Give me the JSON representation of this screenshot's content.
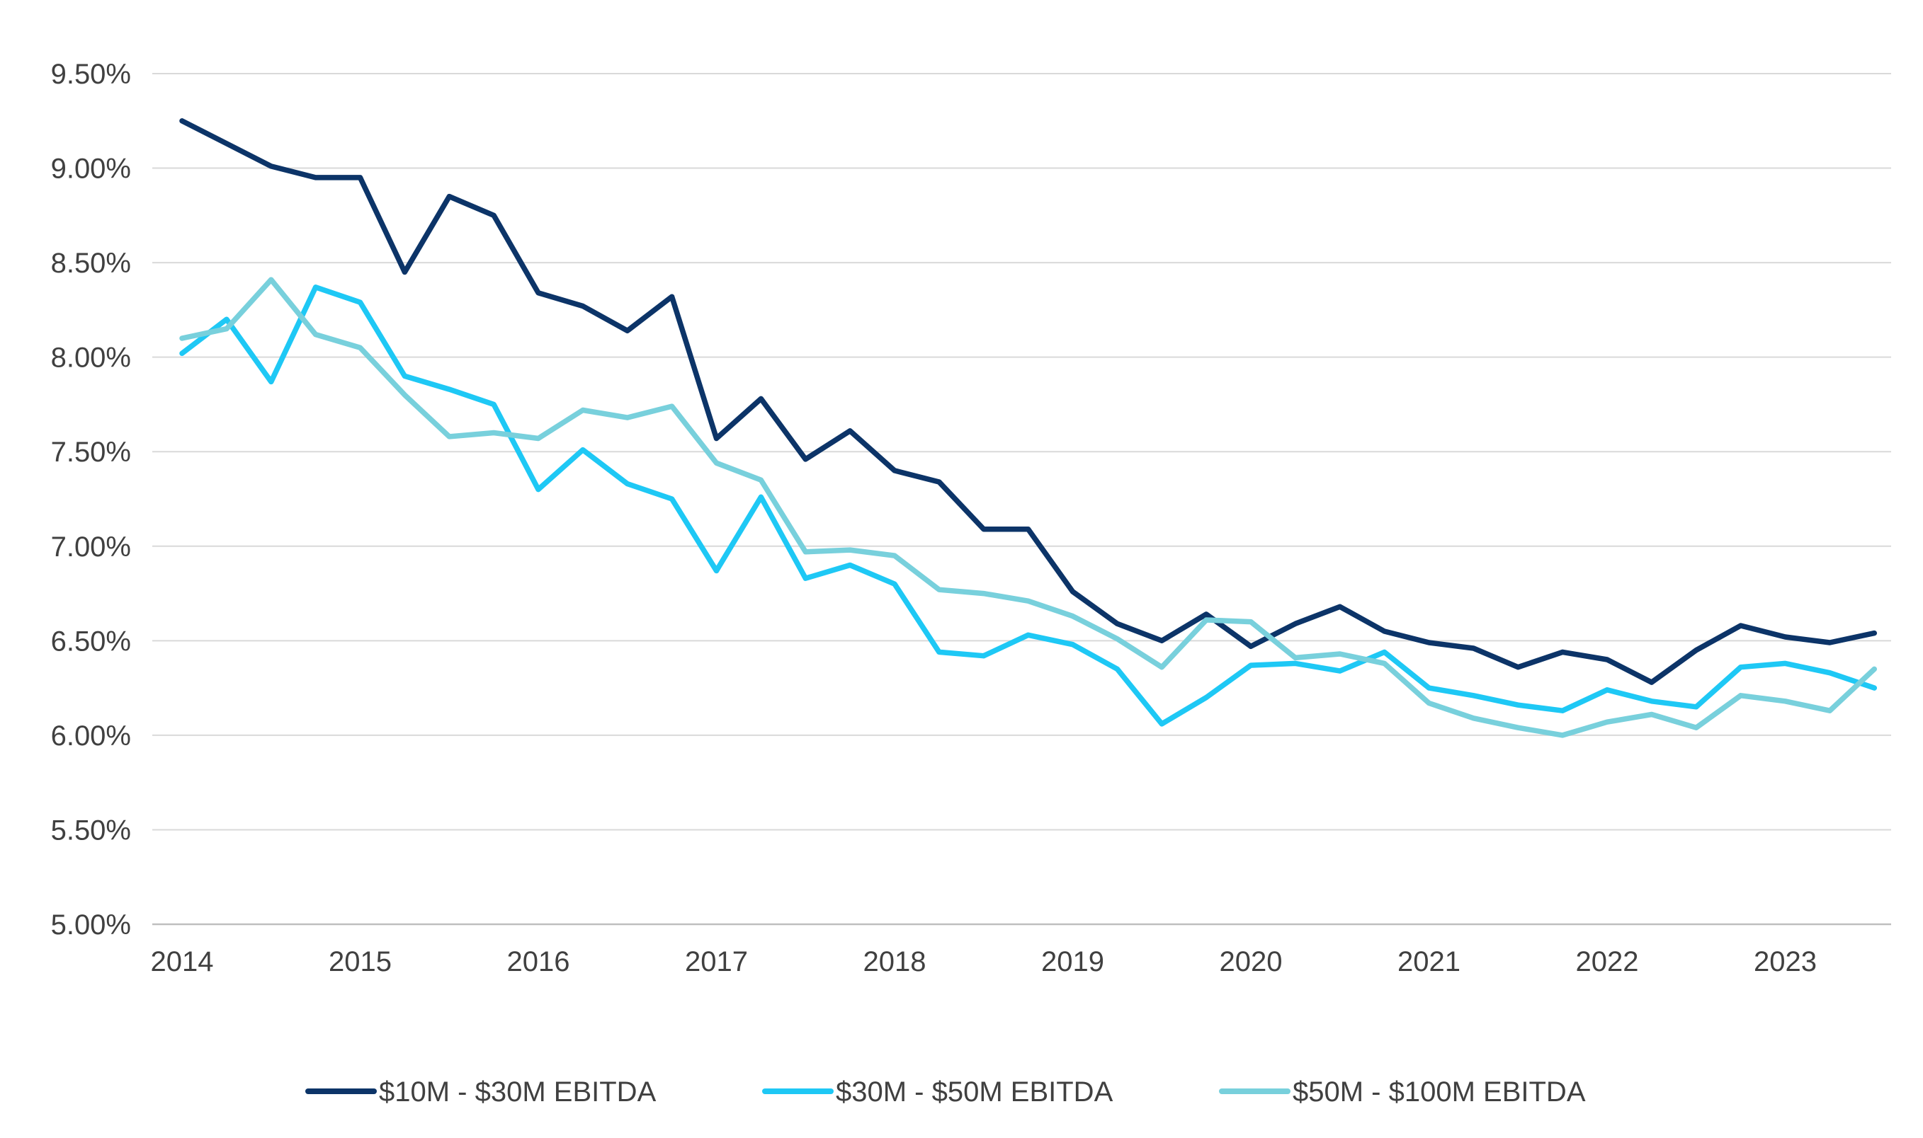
{
  "chart_data": {
    "type": "line",
    "title": "",
    "xlabel": "",
    "ylabel": "",
    "x_ticks": [
      "2014",
      "2015",
      "2016",
      "2017",
      "2018",
      "2019",
      "2020",
      "2021",
      "2022",
      "2023"
    ],
    "y_ticks": [
      "5.00%",
      "5.50%",
      "6.00%",
      "6.50%",
      "7.00%",
      "7.50%",
      "8.00%",
      "8.50%",
      "9.00%",
      "9.50%"
    ],
    "ylim": [
      5.0,
      9.5
    ],
    "y_unit": "%",
    "x_start_year": 2014,
    "x_end": "2023 Q3",
    "frequency": "quarterly",
    "grid": true,
    "legend_position": "bottom",
    "series": [
      {
        "name": "$10M - $30M EBITDA",
        "color": "#0c3468",
        "values": [
          9.25,
          9.13,
          9.01,
          8.95,
          8.95,
          8.45,
          8.85,
          8.75,
          8.34,
          8.27,
          8.14,
          8.32,
          7.57,
          7.78,
          7.46,
          7.61,
          7.4,
          7.34,
          7.09,
          7.09,
          6.76,
          6.59,
          6.5,
          6.64,
          6.47,
          6.59,
          6.68,
          6.55,
          6.49,
          6.46,
          6.36,
          6.44,
          6.4,
          6.28,
          6.45,
          6.58,
          6.52,
          6.49,
          6.54
        ]
      },
      {
        "name": "$30M - $50M EBITDA",
        "color": "#1ec8f5",
        "values": [
          8.02,
          8.2,
          7.87,
          8.37,
          8.29,
          7.9,
          7.83,
          7.75,
          7.3,
          7.51,
          7.33,
          7.25,
          6.87,
          7.26,
          6.83,
          6.9,
          6.8,
          6.44,
          6.42,
          6.53,
          6.48,
          6.35,
          6.06,
          6.2,
          6.37,
          6.38,
          6.34,
          6.44,
          6.25,
          6.21,
          6.16,
          6.13,
          6.24,
          6.18,
          6.15,
          6.36,
          6.38,
          6.33,
          6.25
        ]
      },
      {
        "name": "$50M - $100M EBITDA",
        "color": "#78d0dc",
        "values": [
          8.1,
          8.15,
          8.41,
          8.12,
          8.05,
          7.8,
          7.58,
          7.6,
          7.57,
          7.72,
          7.68,
          7.74,
          7.44,
          7.35,
          6.97,
          6.98,
          6.95,
          6.77,
          6.75,
          6.71,
          6.63,
          6.51,
          6.36,
          6.61,
          6.6,
          6.41,
          6.43,
          6.38,
          6.17,
          6.09,
          6.04,
          6.0,
          6.07,
          6.11,
          6.04,
          6.21,
          6.18,
          6.13,
          6.35
        ]
      }
    ]
  }
}
